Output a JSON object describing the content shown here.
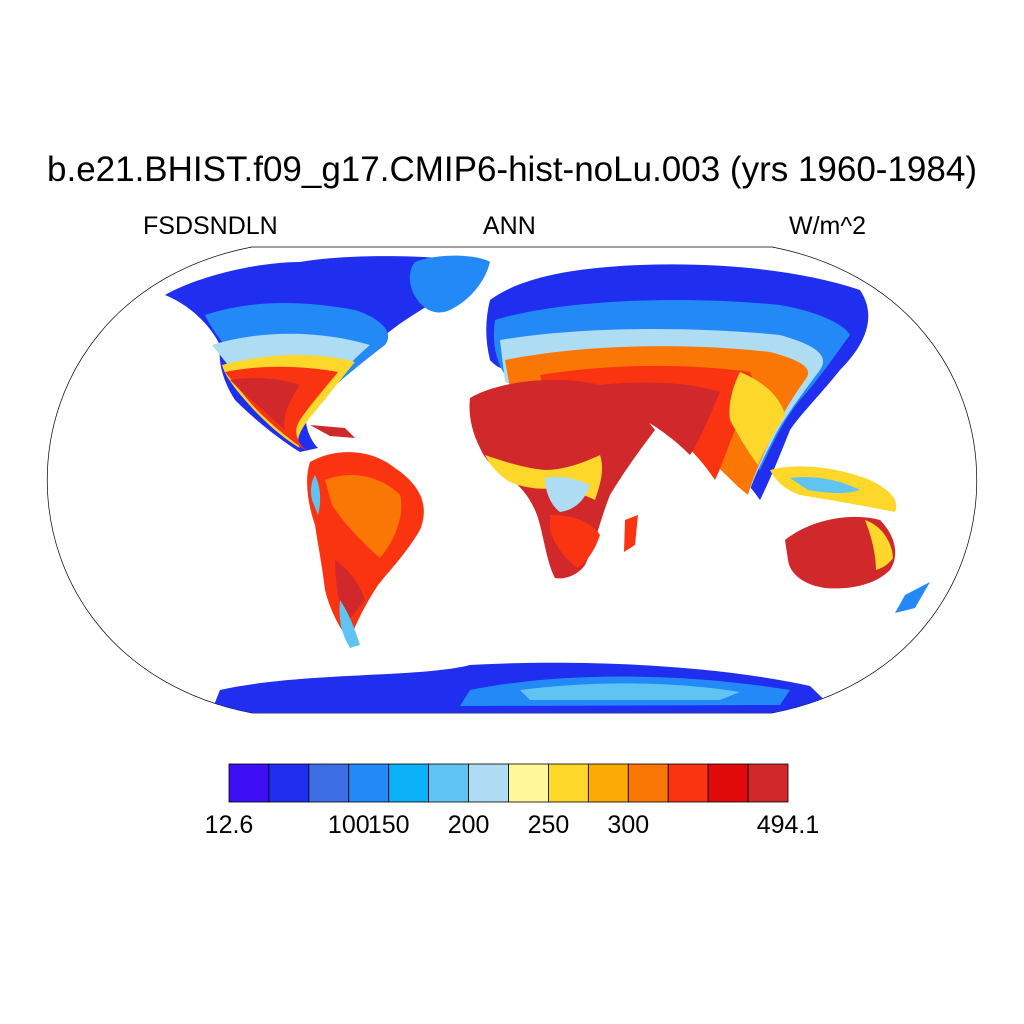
{
  "header": {
    "title": "b.e21.BHIST.f09_g17.CMIP6-hist-noLu.003 (yrs 1960-1984)",
    "left": "FSDSNDLN",
    "center": "ANN",
    "right": "W/m^2"
  },
  "colorbar": {
    "colors": [
      "#3e0ff4",
      "#1f2eef",
      "#3d6ee5",
      "#2389f6",
      "#0bb1f6",
      "#5fc4f2",
      "#aedcf2",
      "#fff79a",
      "#fdd72a",
      "#fbaa06",
      "#fb7705",
      "#fa3411",
      "#e10a0a",
      "#d1292b"
    ],
    "labels": [
      {
        "text": "12.6",
        "boundary": 0
      },
      {
        "text": "100",
        "boundary": 3
      },
      {
        "text": "150",
        "boundary": 4
      },
      {
        "text": "200",
        "boundary": 6
      },
      {
        "text": "250",
        "boundary": 8
      },
      {
        "text": "300",
        "boundary": 10
      },
      {
        "text": "494.1",
        "boundary": 14
      }
    ]
  }
}
